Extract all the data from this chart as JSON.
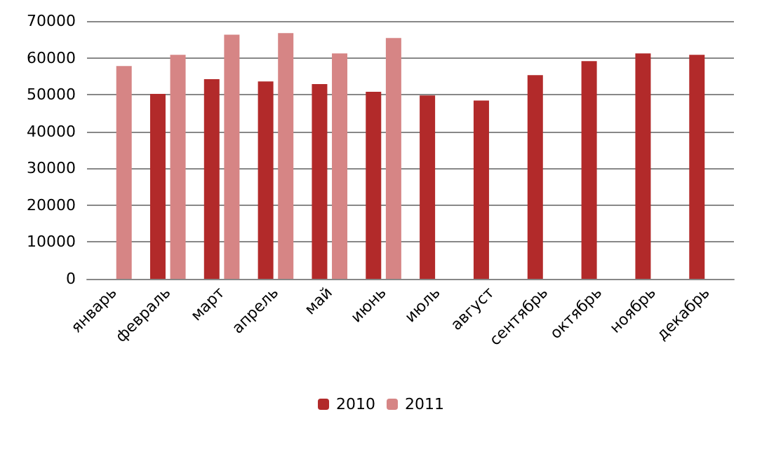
{
  "chart_data": {
    "type": "bar",
    "categories": [
      "январь",
      "февраль",
      "март",
      "апрель",
      "май",
      "июнь",
      "июль",
      "август",
      "сентябрь",
      "октябрь",
      "ноябрь",
      "декабрь"
    ],
    "series": [
      {
        "name": "2010",
        "color": "#b22a2a",
        "values": [
          null,
          50200,
          54200,
          53600,
          52900,
          50800,
          49800,
          48400,
          55300,
          59100,
          61200,
          60800
        ]
      },
      {
        "name": "2011",
        "color": "#d68585",
        "values": [
          57800,
          60800,
          66300,
          66700,
          61200,
          65400,
          null,
          null,
          null,
          null,
          null,
          null
        ]
      }
    ],
    "ylim": [
      0,
      70000
    ],
    "yticks": [
      0,
      10000,
      20000,
      30000,
      40000,
      50000,
      60000,
      70000
    ],
    "grid": "y",
    "legend": "bottom"
  }
}
